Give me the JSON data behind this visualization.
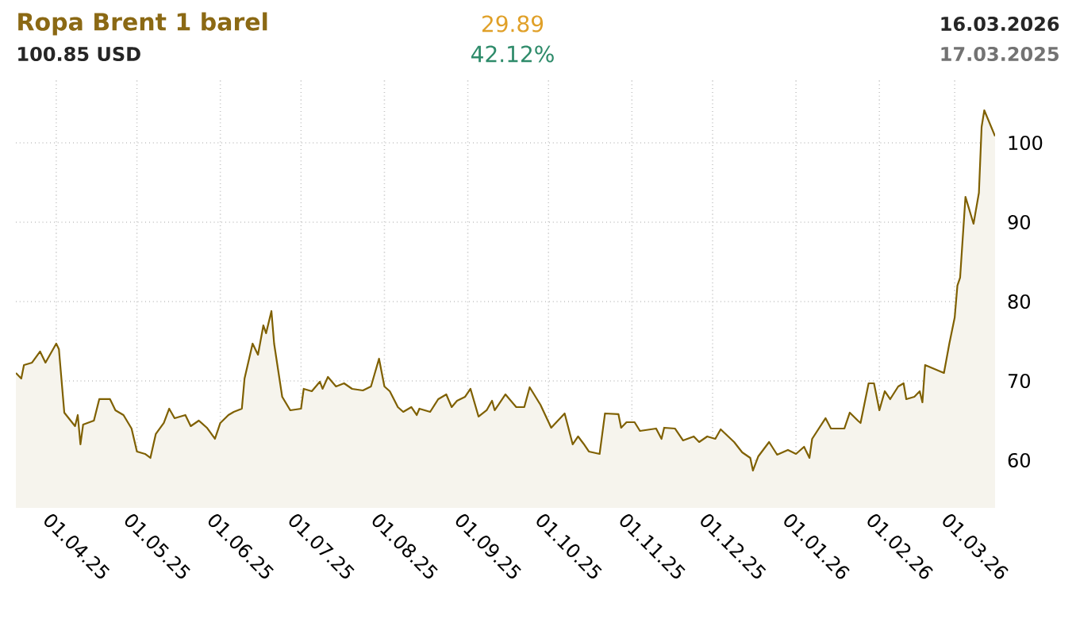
{
  "chart_data": {
    "type": "area",
    "title": "Ropa Brent 1 barel",
    "annotations": [
      "100.85 USD",
      "29.89",
      "42.12%",
      "16.03.2026",
      "17.03.2025"
    ],
    "x": [
      "2025-03-17",
      "2025-03-19",
      "2025-03-20",
      "2025-03-23",
      "2025-03-26",
      "2025-03-28",
      "2025-04-01",
      "2025-04-02",
      "2025-04-04",
      "2025-04-08",
      "2025-04-09",
      "2025-04-10",
      "2025-04-11",
      "2025-04-15",
      "2025-04-17",
      "2025-04-21",
      "2025-04-23",
      "2025-04-26",
      "2025-04-29",
      "2025-05-01",
      "2025-05-04",
      "2025-05-06",
      "2025-05-08",
      "2025-05-11",
      "2025-05-13",
      "2025-05-15",
      "2025-05-19",
      "2025-05-21",
      "2025-05-24",
      "2025-05-27",
      "2025-05-30",
      "2025-06-01",
      "2025-06-04",
      "2025-06-06",
      "2025-06-09",
      "2025-06-10",
      "2025-06-13",
      "2025-06-15",
      "2025-06-17",
      "2025-06-18",
      "2025-06-20",
      "2025-06-21",
      "2025-06-24",
      "2025-06-27",
      "2025-07-01",
      "2025-07-02",
      "2025-07-05",
      "2025-07-08",
      "2025-07-09",
      "2025-07-11",
      "2025-07-14",
      "2025-07-17",
      "2025-07-20",
      "2025-07-24",
      "2025-07-27",
      "2025-07-30",
      "2025-08-01",
      "2025-08-03",
      "2025-08-06",
      "2025-08-08",
      "2025-08-11",
      "2025-08-13",
      "2025-08-14",
      "2025-08-18",
      "2025-08-21",
      "2025-08-24",
      "2025-08-26",
      "2025-08-28",
      "2025-08-31",
      "2025-09-02",
      "2025-09-05",
      "2025-09-08",
      "2025-09-10",
      "2025-09-11",
      "2025-09-15",
      "2025-09-19",
      "2025-09-22",
      "2025-09-24",
      "2025-09-28",
      "2025-10-02",
      "2025-10-07",
      "2025-10-10",
      "2025-10-12",
      "2025-10-14",
      "2025-10-16",
      "2025-10-20",
      "2025-10-22",
      "2025-10-27",
      "2025-10-28",
      "2025-10-30",
      "2025-11-02",
      "2025-11-04",
      "2025-11-10",
      "2025-11-12",
      "2025-11-13",
      "2025-11-17",
      "2025-11-20",
      "2025-11-24",
      "2025-11-26",
      "2025-11-29",
      "2025-12-02",
      "2025-12-04",
      "2025-12-09",
      "2025-12-12",
      "2025-12-15",
      "2025-12-16",
      "2025-12-18",
      "2025-12-22",
      "2025-12-25",
      "2025-12-29",
      "2026-01-01",
      "2026-01-04",
      "2026-01-06",
      "2026-01-07",
      "2026-01-12",
      "2026-01-14",
      "2026-01-19",
      "2026-01-21",
      "2026-01-24",
      "2026-01-25",
      "2026-01-28",
      "2026-01-30",
      "2026-02-01",
      "2026-02-03",
      "2026-02-05",
      "2026-02-08",
      "2026-02-10",
      "2026-02-11",
      "2026-02-14",
      "2026-02-16",
      "2026-02-17",
      "2026-02-18",
      "2026-02-25",
      "2026-02-27",
      "2026-03-01",
      "2026-03-02",
      "2026-03-03",
      "2026-03-05",
      "2026-03-08",
      "2026-03-10",
      "2026-03-11",
      "2026-03-12",
      "2026-03-16"
    ],
    "values": [
      71,
      70.3,
      72,
      72.3,
      73.7,
      72.3,
      74.7,
      74,
      66,
      64.3,
      65.7,
      62,
      64.5,
      65,
      67.7,
      67.7,
      66.3,
      65.7,
      64,
      61.1,
      60.8,
      60.3,
      63.3,
      64.7,
      66.5,
      65.3,
      65.7,
      64.3,
      65,
      64.1,
      62.7,
      64.7,
      65.7,
      66.1,
      66.5,
      70.3,
      74.7,
      73.3,
      77,
      76,
      78.8,
      74.7,
      68,
      66.3,
      66.5,
      69,
      68.7,
      69.9,
      69,
      70.5,
      69.3,
      69.7,
      69,
      68.8,
      69.3,
      72.8,
      69.3,
      68.7,
      66.7,
      66.1,
      66.7,
      65.7,
      66.5,
      66.1,
      67.7,
      68.3,
      66.7,
      67.5,
      68,
      69,
      65.5,
      66.3,
      67.5,
      66.3,
      68.3,
      66.7,
      66.7,
      69.2,
      67,
      64.1,
      65.9,
      62,
      63,
      62.1,
      61.1,
      60.8,
      65.9,
      65.8,
      64.1,
      64.8,
      64.8,
      63.7,
      64,
      62.7,
      64.1,
      64,
      62.5,
      63,
      62.3,
      63,
      62.7,
      63.9,
      62.3,
      61,
      60.3,
      58.7,
      60.5,
      62.3,
      60.7,
      61.3,
      60.8,
      61.7,
      60.3,
      62.7,
      65.3,
      64,
      64,
      66,
      65,
      64.7,
      69.7,
      69.7,
      66.3,
      68.7,
      67.7,
      69.3,
      69.7,
      67.7,
      68,
      68.7,
      67.3,
      72,
      71,
      74.7,
      78,
      82,
      83,
      93.2,
      89.8,
      93.7,
      102,
      104.1,
      100.85
    ],
    "color": "#7f6000",
    "xlim": [
      "2025-03-17",
      "2026-03-16"
    ],
    "xticks": [
      {
        "value": "2025-04-01",
        "label": "01.04.25"
      },
      {
        "value": "2025-05-01",
        "label": "01.05.25"
      },
      {
        "value": "2025-06-01",
        "label": "01.06.25"
      },
      {
        "value": "2025-07-01",
        "label": "01.07.25"
      },
      {
        "value": "2025-08-01",
        "label": "01.08.25"
      },
      {
        "value": "2025-09-01",
        "label": "01.09.25"
      },
      {
        "value": "2025-10-01",
        "label": "01.10.25"
      },
      {
        "value": "2025-11-01",
        "label": "01.11.25"
      },
      {
        "value": "2025-12-01",
        "label": "01.12.25"
      },
      {
        "value": "2026-01-01",
        "label": "01.01.26"
      },
      {
        "value": "2026-02-01",
        "label": "01.02.26"
      },
      {
        "value": "2026-03-01",
        "label": "01.03.26"
      }
    ],
    "ylim": [
      54,
      108
    ],
    "yticks": [
      60,
      70,
      80,
      90,
      100
    ],
    "grid": true
  }
}
